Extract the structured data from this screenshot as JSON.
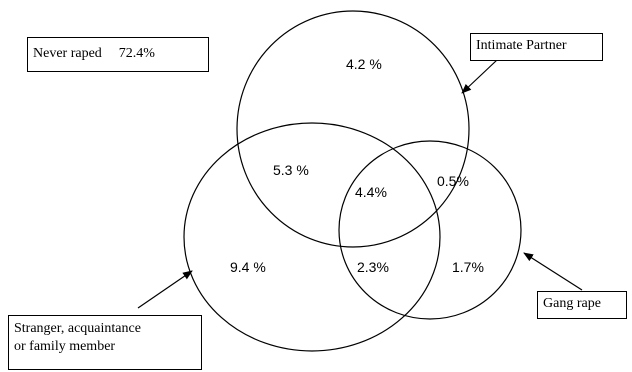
{
  "legend_box": {
    "label": "Never raped",
    "value": "72.4%"
  },
  "sets": {
    "intimate_partner": "Intimate Partner",
    "stranger": "Stranger, acquaintance",
    "stranger_line2": "or family member",
    "gang_rape": "Gang rape"
  },
  "regions": {
    "ip_only": "4.2 %",
    "ip_stranger": "5.3 %",
    "ip_gang": "0.5%",
    "all_three": "4.4%",
    "stranger_only": "9.4 %",
    "stranger_gang": "2.3%",
    "gang_only": "1.7%"
  },
  "colors": {
    "line": "#000000",
    "background": "#ffffff",
    "text": "#000000"
  }
}
